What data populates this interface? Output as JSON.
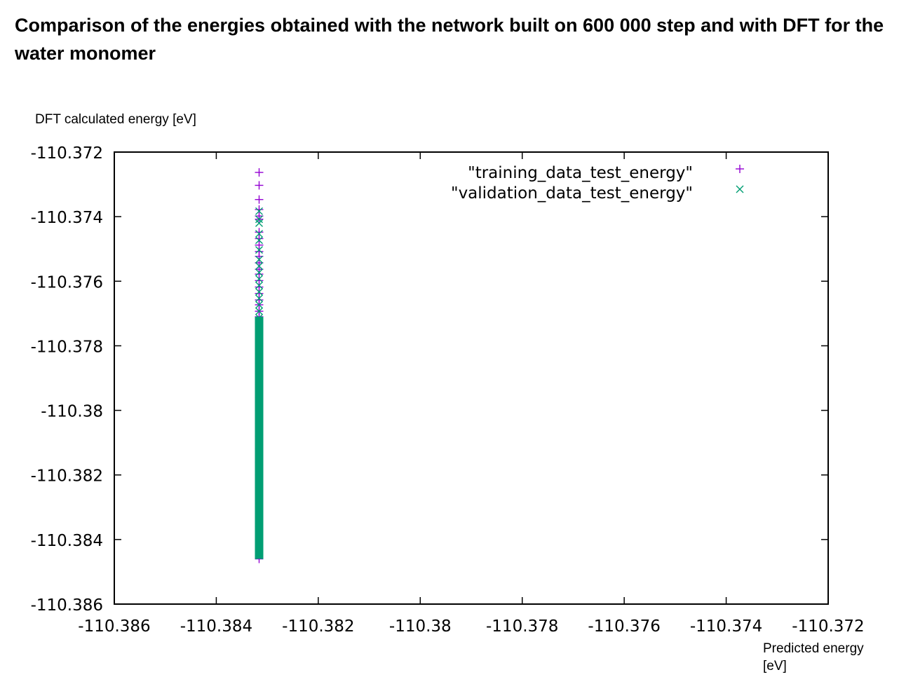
{
  "chart_data": {
    "type": "scatter",
    "title": "Comparison of the energies obtained with the network  built on 600 000 step and with DFT for the water monomer",
    "xlabel": "Predicted energy [eV]",
    "ylabel": "DFT calculated energy [eV]",
    "xlim": [
      -110.386,
      -110.372
    ],
    "ylim": [
      -110.386,
      -110.372
    ],
    "xticks": [
      "-110.386",
      "-110.384",
      "-110.382",
      "-110.38",
      "-110.378",
      "-110.376",
      "-110.374",
      "-110.372"
    ],
    "yticks": [
      "-110.372",
      "-110.374",
      "-110.376",
      "-110.378",
      "-110.38",
      "-110.382",
      "-110.384",
      "-110.386"
    ],
    "grid": false,
    "legend_position": "top-right",
    "series": [
      {
        "name": "\"training_data_test_energy\"",
        "marker": "plus",
        "color": "#9400d3",
        "x_constant": -110.38316,
        "y": [
          -110.37263,
          -110.37303,
          -110.37347,
          -110.37378,
          -110.37398,
          -110.37408,
          -110.37448,
          -110.37468,
          -110.37488,
          -110.37508,
          -110.37523,
          -110.37543,
          -110.37563,
          -110.37578,
          -110.37598,
          -110.37618,
          -110.37638,
          -110.37658,
          -110.37673,
          -110.37693,
          -110.3771,
          -110.3773,
          -110.3775,
          -110.3778,
          -110.3781,
          -110.3784,
          -110.3788,
          -110.3792,
          -110.3796,
          -110.38,
          -110.3804,
          -110.3808,
          -110.3812,
          -110.3816,
          -110.382,
          -110.3824,
          -110.3828,
          -110.3832,
          -110.3836,
          -110.384,
          -110.3843,
          -110.3845,
          -110.3846
        ]
      },
      {
        "name": "\"validation_data_test_energy\"",
        "marker": "cross",
        "color": "#009e73",
        "x_constant": -110.38316,
        "y": [
          -110.37383,
          -110.37408,
          -110.3742,
          -110.37453,
          -110.37473,
          -110.37503,
          -110.37533,
          -110.37553,
          -110.37573,
          -110.37593,
          -110.37613,
          -110.37633,
          -110.37653,
          -110.37673,
          -110.37693,
          -110.37713,
          -110.37733,
          -110.37753,
          -110.37773,
          -110.37793,
          -110.37813,
          -110.3783,
          -110.3786,
          -110.3789,
          -110.3792,
          -110.3795,
          -110.3798,
          -110.3801,
          -110.3804,
          -110.3807,
          -110.381,
          -110.3813,
          -110.3816,
          -110.3819,
          -110.3822,
          -110.3825,
          -110.3828,
          -110.3831,
          -110.3834,
          -110.3837,
          -110.384,
          -110.3843,
          -110.3845
        ]
      }
    ]
  },
  "dense_band": {
    "series_index": 1,
    "y_from": -110.3771,
    "y_to": -110.3846
  },
  "ylabel_text": "DFT calculated energy [eV]",
  "xlabel_text": "Predicted energy [eV]"
}
